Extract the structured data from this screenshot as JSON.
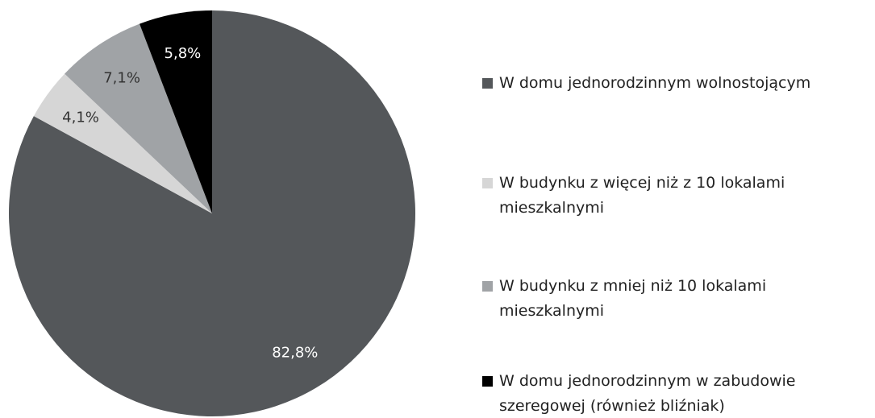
{
  "chart_data": {
    "type": "pie",
    "categories": [
      "W domu jednorodzinnym wolnostojącym",
      "W budynku z więcej niż z 10 lokalami mieszkalnymi",
      "W budynku z mniej niż 10 lokalami mieszkalnymi",
      "W domu jednorodzinnym w zabudowie szeregowej (również bliźniak)"
    ],
    "values": [
      82.8,
      4.1,
      7.1,
      5.8
    ],
    "value_labels": [
      "82,8%",
      "4,1%",
      "7,1%",
      "5,8%"
    ],
    "colors": [
      "#54575a",
      "#d6d6d6",
      "#a0a3a6",
      "#000000"
    ],
    "legend": "right"
  }
}
